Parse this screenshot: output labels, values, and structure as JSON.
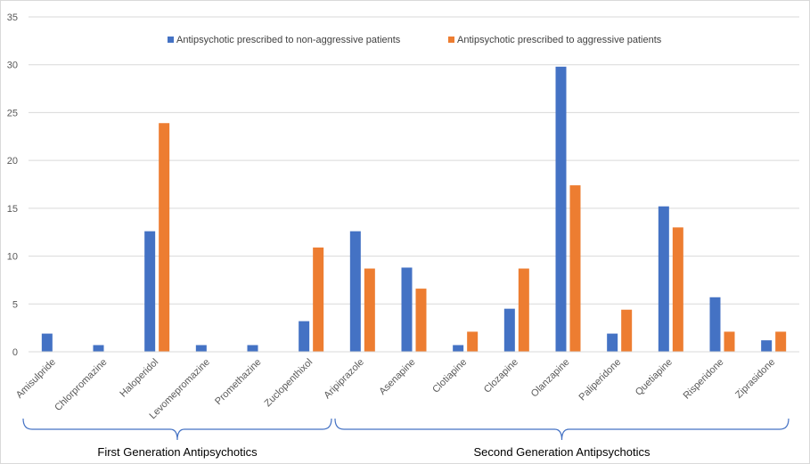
{
  "chart_data": {
    "type": "bar",
    "categories": [
      "Amisulpride",
      "Chlorpromazine",
      "Haloperidol",
      "Levomepromazine",
      "Promethazine",
      "Zuclopenthixol",
      "Aripiprazole",
      "Asenapine",
      "Clotiapine",
      "Clozapine",
      "Olanzapine",
      "Paliperidone",
      "Quetiapine",
      "Risperidone",
      "Ziprasidone"
    ],
    "series": [
      {
        "name": "Antipsychotic prescribed to non-aggressive patients",
        "color": "#4472C4",
        "values": [
          1.9,
          0.7,
          12.6,
          0.7,
          0.7,
          3.2,
          12.6,
          8.8,
          0.7,
          4.5,
          29.8,
          1.9,
          15.2,
          5.7,
          1.2
        ]
      },
      {
        "name": "Antipsychotic prescribed to aggressive patients",
        "color": "#ED7D31",
        "values": [
          0,
          0,
          23.9,
          0,
          0,
          10.9,
          8.7,
          6.6,
          2.1,
          8.7,
          17.4,
          4.4,
          13.0,
          2.1,
          2.1
        ]
      }
    ],
    "ylim": [
      0,
      35
    ],
    "yticks": [
      0,
      5,
      10,
      15,
      20,
      25,
      30,
      35
    ],
    "grid": true,
    "legend": "top",
    "groups": [
      {
        "label": "First Generation Antipsychotics",
        "from": 0,
        "to": 5
      },
      {
        "label": "Second Generation Antipsychotics",
        "from": 6,
        "to": 14
      }
    ]
  }
}
